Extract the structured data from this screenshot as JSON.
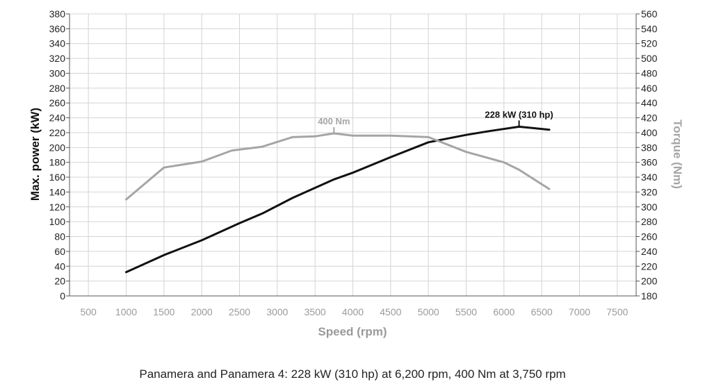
{
  "chart_data": {
    "type": "line",
    "xlabel": "Speed (rpm)",
    "ylabel_left": "Max. power (kW)",
    "ylabel_right": "Torque (Nm)",
    "xlim": [
      250,
      7750
    ],
    "ylim_left": [
      0,
      380
    ],
    "ylim_right": [
      180,
      560
    ],
    "x_ticks": [
      500,
      1000,
      1500,
      2000,
      2500,
      3000,
      3500,
      4000,
      4500,
      5000,
      5500,
      6000,
      6500,
      7000,
      7500
    ],
    "y_ticks_left": [
      0,
      20,
      40,
      60,
      80,
      100,
      120,
      140,
      160,
      180,
      200,
      220,
      240,
      260,
      280,
      300,
      320,
      340,
      360,
      380
    ],
    "y_ticks_right": [
      180,
      200,
      220,
      240,
      260,
      280,
      300,
      320,
      340,
      360,
      380,
      400,
      420,
      440,
      460,
      480,
      500,
      520,
      540,
      560
    ],
    "grid": true,
    "series": [
      {
        "axis": "left",
        "color": "#111111",
        "x": [
          1000,
          1500,
          2000,
          2500,
          2800,
          3200,
          3750,
          4000,
          4500,
          5000,
          5500,
          5800,
          6200,
          6600
        ],
        "y": [
          32,
          55,
          75,
          98,
          111,
          132,
          157,
          166,
          187,
          207,
          217,
          222,
          228,
          224
        ]
      },
      {
        "axis": "right",
        "color": "#a5a5a5",
        "x": [
          1000,
          1500,
          2000,
          2400,
          2800,
          3200,
          3500,
          3750,
          4000,
          4500,
          5000,
          5500,
          6000,
          6200,
          6600
        ],
        "y": [
          310,
          353,
          361,
          376,
          381,
          394,
          395,
          399,
          396,
          396,
          394,
          374,
          360,
          350,
          324
        ]
      }
    ],
    "annotations": [
      {
        "text": "228 kW (310 hp)",
        "series": 0,
        "x": 6200,
        "y": 228
      },
      {
        "text": "400 Nm",
        "series": 1,
        "x": 3750,
        "y": 399
      }
    ],
    "caption": "Panamera and Panamera 4: 228 kW (310 hp) at 6,200 rpm, 400 Nm at 3,750 rpm"
  }
}
